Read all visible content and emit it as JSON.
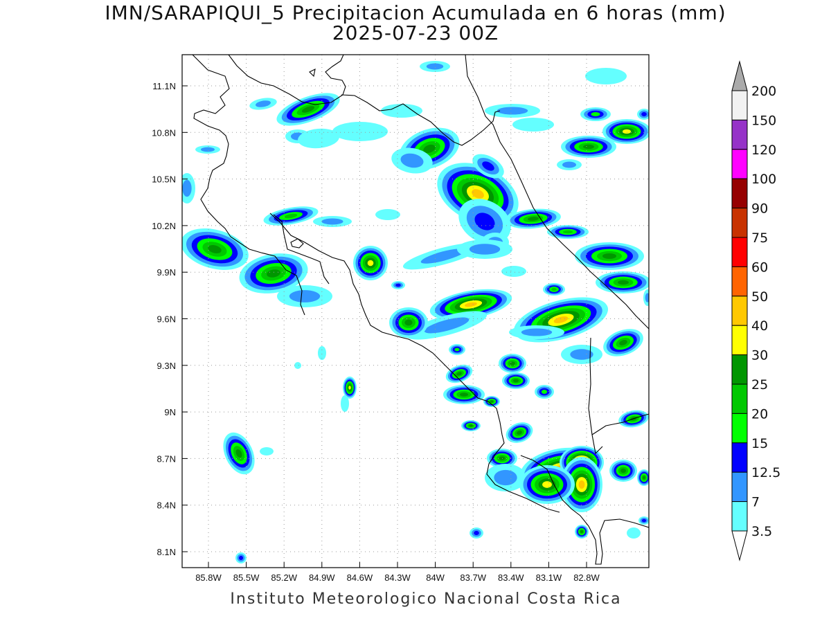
{
  "title": {
    "line1": "IMN/SARAPIQUI_5 Precipitacion Acumulada en 6 horas (mm)",
    "line2": "2025-07-23 00Z"
  },
  "footer": "Instituto Meteorologico Nacional Costa Rica",
  "axes": {
    "lat_ticks": [
      "11.1N",
      "10.8N",
      "10.5N",
      "10.2N",
      "9.9N",
      "9.6N",
      "9.3N",
      "9N",
      "8.7N",
      "8.4N",
      "8.1N"
    ],
    "lon_ticks": [
      "85.8W",
      "85.5W",
      "85.2W",
      "84.9W",
      "84.6W",
      "84.3W",
      "84W",
      "83.7W",
      "83.4W",
      "83.1W",
      "82.8W"
    ],
    "lat_range": [
      8.0,
      11.3
    ],
    "lon_range": [
      -85.99,
      -82.4
    ],
    "grid": "dotted"
  },
  "colorbar": {
    "units": "mm",
    "levels": [
      "200",
      "150",
      "120",
      "100",
      "90",
      "75",
      "60",
      "50",
      "40",
      "30",
      "25",
      "20",
      "15",
      "12.5",
      "7",
      "3.5"
    ],
    "colors": [
      "#f2f2f2",
      "#9632c8",
      "#ff00ff",
      "#960000",
      "#c83200",
      "#ff0000",
      "#ff6400",
      "#ffc800",
      "#ffff00",
      "#009600",
      "#00c800",
      "#00ff00",
      "#0000ff",
      "#3296ff",
      "#64ffff"
    ],
    "over_color": "#aaaaaa",
    "under_color": "#ffffff"
  },
  "precip_palette": {
    "c35": "#64ffff",
    "c7": "#3296ff",
    "c125": "#0000ff",
    "c15": "#00ff00",
    "c20": "#00c800",
    "c25": "#009600",
    "c30": "#ffff00",
    "c40": "#ffc800",
    "c60": "#ff6400",
    "c75": "#ff0000"
  }
}
